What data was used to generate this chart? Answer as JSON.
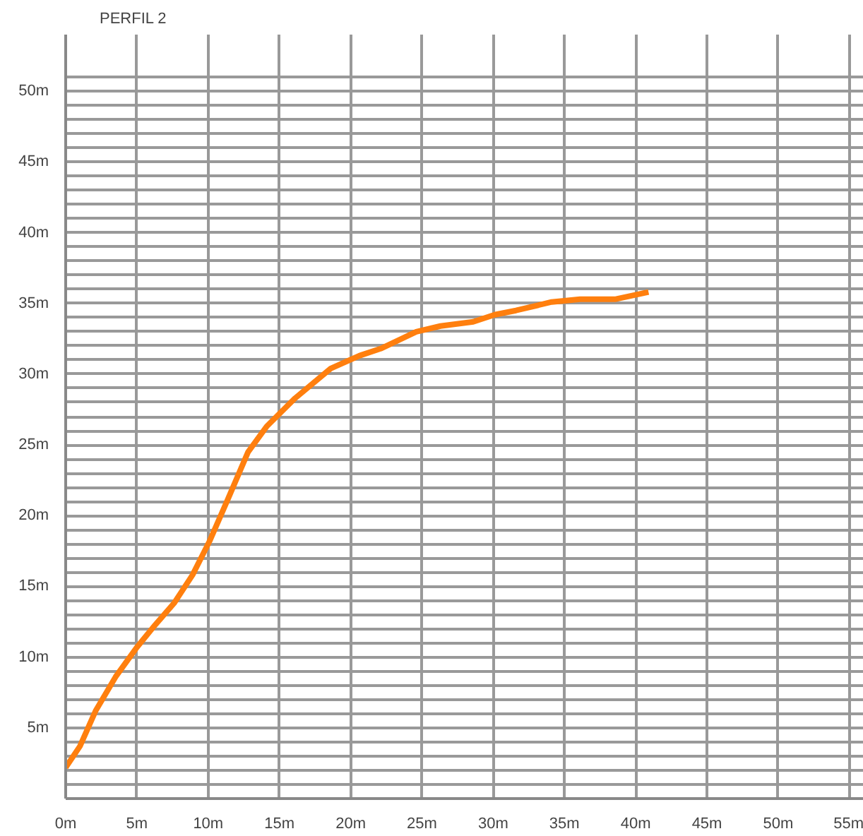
{
  "chart_data": {
    "type": "line",
    "title": "PERFIL 2",
    "x": [
      0,
      1,
      2.1,
      3.5,
      5,
      6.3,
      7.6,
      8.9,
      10.1,
      11.4,
      12.8,
      14.1,
      16.1,
      18.6,
      20.6,
      22.1,
      24.6,
      26.3,
      28.6,
      30.1,
      31.6,
      34.1,
      36.1,
      38.6,
      40.9
    ],
    "series": [
      {
        "color": "#ff7f0e",
        "values": [
          2.2,
          3.7,
          6.2,
          8.6,
          10.7,
          12.3,
          13.8,
          15.8,
          18.2,
          21.2,
          24.5,
          26.3,
          28.3,
          30.4,
          31.3,
          31.8,
          33.0,
          33.4,
          33.7,
          34.2,
          34.5,
          35.1,
          35.3,
          35.3,
          35.8
        ]
      }
    ],
    "xlim": [
      0,
      56
    ],
    "ylim": [
      0,
      54
    ],
    "xticks": [
      {
        "value": 0,
        "label": "0m"
      },
      {
        "value": 5,
        "label": "5m"
      },
      {
        "value": 10,
        "label": "10m"
      },
      {
        "value": 15,
        "label": "15m"
      },
      {
        "value": 20,
        "label": "20m"
      },
      {
        "value": 25,
        "label": "25m"
      },
      {
        "value": 30,
        "label": "30m"
      },
      {
        "value": 35,
        "label": "35m"
      },
      {
        "value": 40,
        "label": "40m"
      },
      {
        "value": 45,
        "label": "45m"
      },
      {
        "value": 50,
        "label": "50m"
      },
      {
        "value": 55,
        "label": "55m"
      }
    ],
    "yticks": [
      {
        "value": 1,
        "label": null
      },
      {
        "value": 2,
        "label": null
      },
      {
        "value": 3,
        "label": null
      },
      {
        "value": 4,
        "label": null
      },
      {
        "value": 5,
        "label": "5m"
      },
      {
        "value": 6,
        "label": null
      },
      {
        "value": 7,
        "label": null
      },
      {
        "value": 8,
        "label": null
      },
      {
        "value": 9,
        "label": null
      },
      {
        "value": 10,
        "label": "10m"
      },
      {
        "value": 11,
        "label": null
      },
      {
        "value": 12,
        "label": null
      },
      {
        "value": 13,
        "label": null
      },
      {
        "value": 14,
        "label": null
      },
      {
        "value": 15,
        "label": "15m"
      },
      {
        "value": 16,
        "label": null
      },
      {
        "value": 17,
        "label": null
      },
      {
        "value": 18,
        "label": null
      },
      {
        "value": 19,
        "label": null
      },
      {
        "value": 20,
        "label": "20m"
      },
      {
        "value": 21,
        "label": null
      },
      {
        "value": 22,
        "label": null
      },
      {
        "value": 23,
        "label": null
      },
      {
        "value": 24,
        "label": null
      },
      {
        "value": 25,
        "label": "25m"
      },
      {
        "value": 26,
        "label": null
      },
      {
        "value": 27,
        "label": null
      },
      {
        "value": 28,
        "label": null
      },
      {
        "value": 29,
        "label": null
      },
      {
        "value": 30,
        "label": "30m"
      },
      {
        "value": 31,
        "label": null
      },
      {
        "value": 32,
        "label": null
      },
      {
        "value": 33,
        "label": null
      },
      {
        "value": 34,
        "label": null
      },
      {
        "value": 35,
        "label": "35m"
      },
      {
        "value": 36,
        "label": null
      },
      {
        "value": 37,
        "label": null
      },
      {
        "value": 38,
        "label": null
      },
      {
        "value": 39,
        "label": null
      },
      {
        "value": 40,
        "label": "40m"
      },
      {
        "value": 41,
        "label": null
      },
      {
        "value": 42,
        "label": null
      },
      {
        "value": 43,
        "label": null
      },
      {
        "value": 44,
        "label": null
      },
      {
        "value": 45,
        "label": "45m"
      },
      {
        "value": 46,
        "label": null
      },
      {
        "value": 47,
        "label": null
      },
      {
        "value": 48,
        "label": null
      },
      {
        "value": 49,
        "label": null
      },
      {
        "value": 50,
        "label": "50m"
      },
      {
        "value": 51,
        "label": null
      }
    ],
    "grid": true,
    "marker": "none",
    "line_style": "solid"
  }
}
